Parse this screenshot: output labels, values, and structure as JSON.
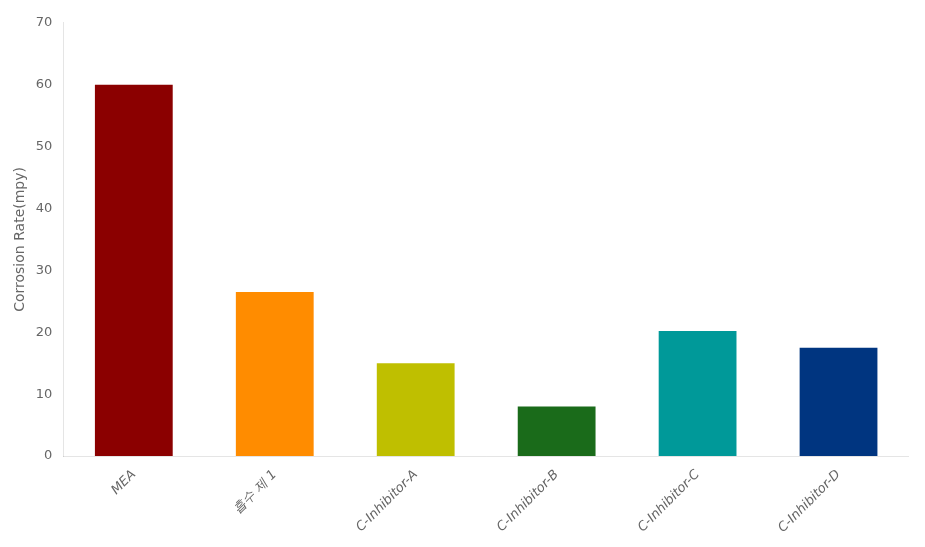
{
  "chart_data": {
    "type": "bar",
    "categories": [
      "MEA",
      "흡수 제 1",
      "C-Inhibitor-A",
      "C-Inhibitor-B",
      "C-Inhibitor-C",
      "C-Inhibitor-D"
    ],
    "values": [
      60.0,
      26.5,
      15.0,
      8.0,
      20.2,
      17.5
    ],
    "colors": [
      "#8B0000",
      "#FF8C00",
      "#BFBF00",
      "#1A6B1A",
      "#009999",
      "#003580"
    ],
    "ylabel": "Corrosion Rate(mpy)",
    "ylim": [
      0,
      70
    ],
    "yticks": [
      0,
      10,
      20,
      30,
      40,
      50,
      60,
      70
    ],
    "grid": false
  }
}
